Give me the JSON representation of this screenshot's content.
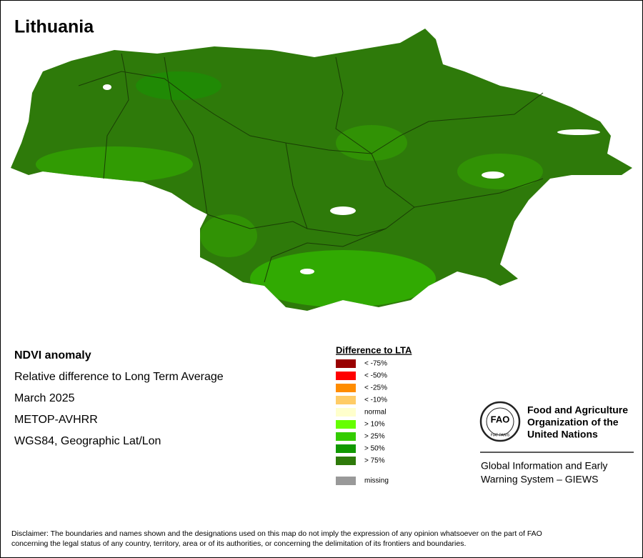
{
  "title": "Lithuania",
  "info": [
    "NDVI anomaly",
    "Relative difference to Long Term Average",
    "March 2025",
    "METOP-AVHRR",
    "WGS84, Geographic Lat/Lon"
  ],
  "legend": {
    "title": "Difference to LTA",
    "items": [
      {
        "label": "< -75%",
        "color": "#990000"
      },
      {
        "label": "< -50%",
        "color": "#ff0000"
      },
      {
        "label": "< -25%",
        "color": "#ff8c00"
      },
      {
        "label": "< -10%",
        "color": "#ffcc66"
      },
      {
        "label": "normal",
        "color": "#ffffcc"
      },
      {
        "label": "> 10%",
        "color": "#66ff00"
      },
      {
        "label": "> 25%",
        "color": "#33cc00"
      },
      {
        "label": "> 50%",
        "color": "#119900"
      },
      {
        "label": "> 75%",
        "color": "#2e7a0a"
      }
    ],
    "missing": {
      "label": "missing",
      "color": "#999999"
    }
  },
  "logo": {
    "emblem": "FAO",
    "motto": "FIAT PANIS",
    "org": [
      "Food and Agriculture",
      "Organization of the",
      "United Nations"
    ],
    "system": [
      "Global Information and Early",
      "Warning System – GIEWS"
    ]
  },
  "disclaimer": [
    "Disclaimer: The boundaries and names shown and the designations used on this map do not imply the expression of any opinion whatsoever on the part of FAO",
    "concerning the legal status of any country, territory, area or of its authorities, or concerning the delimitation of its frontiers and boundaries."
  ]
}
